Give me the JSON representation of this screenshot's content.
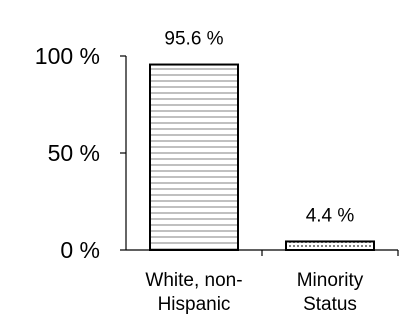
{
  "chart_data": {
    "type": "bar",
    "categories": [
      "White, non-Hispanic",
      "Minority Status"
    ],
    "category_lines": [
      [
        "White, non-",
        "Hispanic"
      ],
      [
        "Minority",
        "Status"
      ]
    ],
    "values": [
      95.6,
      4.4
    ],
    "data_labels": [
      "95.6 %",
      "4.4 %"
    ],
    "patterns": [
      "horizontal-lines",
      "dotted-grid"
    ],
    "ylim": [
      0,
      100
    ],
    "yticks": [
      0,
      50,
      100
    ],
    "ytick_labels": [
      "0 %",
      "50 %",
      "100 %"
    ],
    "title": "",
    "xlabel": "",
    "ylabel": "",
    "grid": false,
    "legend": "none",
    "colors": {
      "bar_fill": "#ffffff",
      "bar_stroke": "#000000",
      "pattern": "#808080",
      "axis": "#000000"
    }
  }
}
